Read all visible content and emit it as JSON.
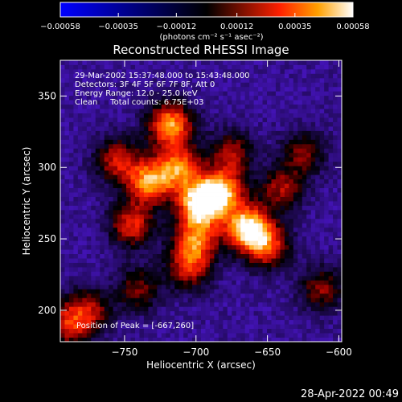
{
  "chart_data": {
    "type": "heatmap",
    "title": "Reconstructed RHESSI Image",
    "xlabel": "Heliocentric X (arcsec)",
    "ylabel": "Heliocentric Y (arcsec)",
    "xlim": [
      -795,
      -598
    ],
    "ylim": [
      178,
      375
    ],
    "xticks": [
      -750,
      -700,
      -650,
      -600
    ],
    "xtick_labels": [
      "−750",
      "−700",
      "−650",
      "−600"
    ],
    "yticks": [
      200,
      250,
      300,
      350
    ],
    "ytick_labels": [
      "200",
      "250",
      "300",
      "350"
    ],
    "colorbar": {
      "min": -0.00058,
      "max": 0.00058,
      "ticks": [
        -0.00058,
        -0.00035,
        -0.00012,
        0.00012,
        0.00035,
        0.00058
      ],
      "tick_labels": [
        "−0.00058",
        "−0.00035",
        "−0.00012",
        "0.00012",
        "0.00035",
        "0.00058"
      ],
      "unit_label": "(photons cm⁻² s⁻¹ asec⁻²)"
    },
    "annotations": [
      "29-Mar-2002 15:37:48.000 to 15:43:48.000",
      "Detectors: 3F 4F 5F 6F 7F 8F, Att 0",
      "Energy Range: 12.0 - 25.0 keV",
      "Clean     Total counts: 6.75E+03",
      "Position of Peak = [-667,260]"
    ],
    "peak": {
      "x": -667,
      "y": 260
    },
    "sources": [
      {
        "x": -697,
        "y": 275,
        "value": 0.00058
      },
      {
        "x": -664,
        "y": 258,
        "value": 0.00055
      },
      {
        "x": -718,
        "y": 330,
        "value": 0.00045
      },
      {
        "x": -682,
        "y": 283,
        "value": 0.00042
      },
      {
        "x": -733,
        "y": 290,
        "value": 0.0004
      },
      {
        "x": -712,
        "y": 300,
        "value": 0.00035
      },
      {
        "x": -700,
        "y": 250,
        "value": 0.00032
      },
      {
        "x": -650,
        "y": 245,
        "value": 0.00028
      },
      {
        "x": -745,
        "y": 260,
        "value": 0.00025
      },
      {
        "x": -705,
        "y": 230,
        "value": 0.00022
      },
      {
        "x": -755,
        "y": 305,
        "value": 0.0002
      },
      {
        "x": -640,
        "y": 285,
        "value": 0.00015
      },
      {
        "x": -675,
        "y": 310,
        "value": 0.00015
      },
      {
        "x": -740,
        "y": 215,
        "value": 0.0001
      },
      {
        "x": -775,
        "y": 200,
        "value": 0.00015
      },
      {
        "x": -790,
        "y": 190,
        "value": 0.0002
      },
      {
        "x": -625,
        "y": 310,
        "value": 0.0001
      },
      {
        "x": -612,
        "y": 215,
        "value": 0.00012
      }
    ]
  },
  "footer": {
    "timestamp": "28-Apr-2022 00:49"
  }
}
